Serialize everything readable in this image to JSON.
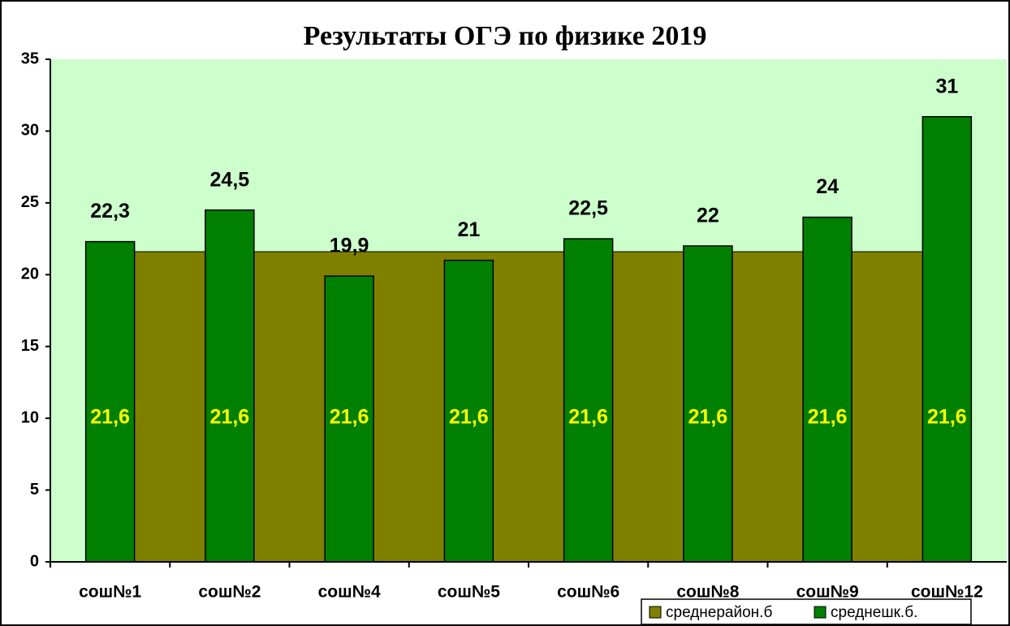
{
  "chart_data": {
    "type": "bar",
    "title": "Результаты ОГЭ по физике 2019",
    "categories": [
      "сош№1",
      "сош№2",
      "сош№4",
      "сош№5",
      "сош№6",
      "сош№8",
      "сош№9",
      "сош№12"
    ],
    "series": [
      {
        "name": "среднерайон.б",
        "type": "area",
        "color": "#808000",
        "label_color": "#ffff00",
        "values": [
          21.6,
          21.6,
          21.6,
          21.6,
          21.6,
          21.6,
          21.6,
          21.6
        ],
        "value_labels": [
          "21,6",
          "21,6",
          "21,6",
          "21,6",
          "21,6",
          "21,6",
          "21,6",
          "21,6"
        ]
      },
      {
        "name": "среднешк.б.",
        "type": "bar",
        "color": "#008000",
        "label_color": "#000000",
        "values": [
          22.3,
          24.5,
          19.9,
          21,
          22.5,
          22,
          24,
          31
        ],
        "value_labels": [
          "22,3",
          "24,5",
          "19,9",
          "21",
          "22,5",
          "22",
          "24",
          "31"
        ]
      }
    ],
    "ylim": [
      0,
      35
    ],
    "yticks": [
      0,
      5,
      10,
      15,
      20,
      25,
      30,
      35
    ],
    "legend": "bottom-right",
    "plot_background": "#ccffcc"
  }
}
